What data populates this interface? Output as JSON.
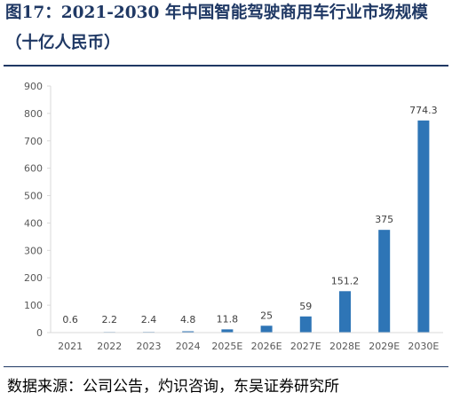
{
  "header": {
    "title_line1": "图17：2021-2030 年中国智能驾驶商用车行业市场规模",
    "title_line2": "（十亿人民币）"
  },
  "footer": {
    "source": "数据来源：公司公告，灼识咨询，东吴证券研究所"
  },
  "colors": {
    "bar": "#2e75b6",
    "title": "#1f3864",
    "axis": "#d9d9d9",
    "tick_text": "#595959"
  },
  "chart_data": {
    "type": "bar",
    "title": "",
    "xlabel": "",
    "ylabel": "",
    "categories": [
      "2021",
      "2022",
      "2023",
      "2024",
      "2025E",
      "2026E",
      "2027E",
      "2028E",
      "2029E",
      "2030E"
    ],
    "values": [
      0.6,
      2.2,
      2.4,
      4.8,
      11.8,
      25,
      59,
      151.2,
      375,
      774.3
    ],
    "data_labels": [
      "0.6",
      "2.2",
      "2.4",
      "4.8",
      "11.8",
      "25",
      "59",
      "151.2",
      "375",
      "774.3"
    ],
    "ylim": [
      0,
      900
    ],
    "yticks": [
      0,
      100,
      200,
      300,
      400,
      500,
      600,
      700,
      800,
      900
    ],
    "grid": false,
    "legend": "none"
  }
}
